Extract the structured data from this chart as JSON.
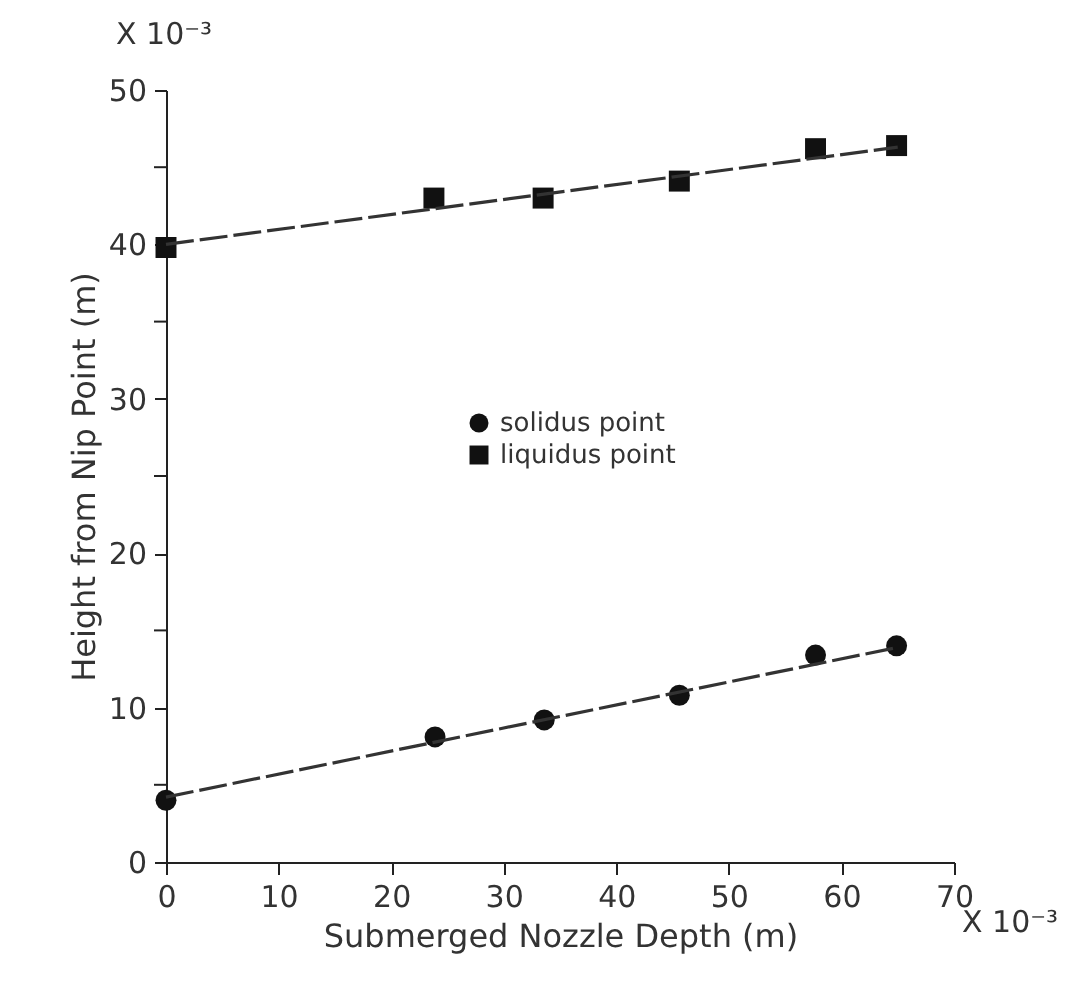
{
  "chart_data": {
    "type": "scatter",
    "xlabel": "Submerged Nozzle Depth (m)",
    "ylabel": "Height from Nip Point (m)",
    "annotations": [
      "X 10⁻³",
      "X 10⁻³"
    ],
    "xlim": [
      0,
      70
    ],
    "xticks": [
      0,
      10,
      20,
      30,
      40,
      50,
      60,
      70
    ],
    "ylim": [
      0,
      50
    ],
    "yticks": [
      0,
      {
        "value": 5,
        "label": null
      },
      10,
      {
        "value": 15,
        "label": null
      },
      20,
      {
        "value": 25,
        "label": null
      },
      30,
      {
        "value": 35,
        "label": null
      },
      40,
      {
        "value": 45,
        "label": null
      },
      50
    ],
    "grid": false,
    "legend": "center",
    "series": [
      {
        "name": "solidus point",
        "marker": "circle",
        "color": "#111111",
        "x": [
          0,
          23.9,
          33.6,
          45.6,
          57.7,
          64.9
        ],
        "values": [
          4.0,
          8.1,
          9.2,
          10.8,
          13.4,
          14.0
        ]
      },
      {
        "name": "liquidus point",
        "marker": "square",
        "color": "#111111",
        "x": [
          0,
          23.8,
          33.5,
          45.6,
          57.7,
          64.9
        ],
        "values": [
          39.8,
          43.0,
          43.0,
          44.1,
          46.2,
          46.4
        ]
      },
      {
        "type": "line",
        "line_style": "dashed",
        "color": "#333333",
        "x": [
          0,
          65
        ],
        "values": [
          4.2,
          13.9
        ]
      },
      {
        "type": "line",
        "line_style": "dashed",
        "color": "#333333",
        "x": [
          0,
          65
        ],
        "values": [
          40.0,
          46.3
        ]
      }
    ]
  }
}
